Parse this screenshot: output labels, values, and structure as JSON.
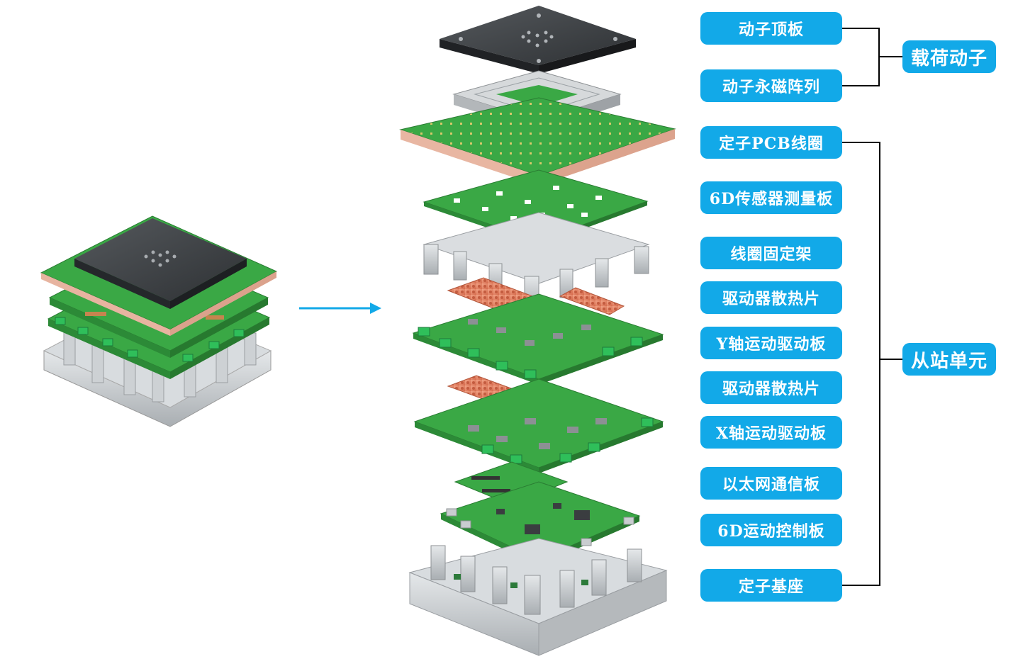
{
  "components": [
    {
      "label": "动子顶板"
    },
    {
      "label": "动子永磁阵列"
    },
    {
      "label": "定子PCB线圈"
    },
    {
      "label": "6D传感器测量板"
    },
    {
      "label": "线圈固定架"
    },
    {
      "label": "驱动器散热片"
    },
    {
      "label": "Y轴运动驱动板"
    },
    {
      "label": "驱动器散热片"
    },
    {
      "label": "X轴运动驱动板"
    },
    {
      "label": "以太网通信板"
    },
    {
      "label": "6D运动控制板"
    },
    {
      "label": "定子基座"
    }
  ],
  "groups": {
    "mover": {
      "label": "载荷动子"
    },
    "slave": {
      "label": "从站单元"
    }
  },
  "colors": {
    "label_bg": "#12a9e8",
    "arrow": "#12a9e8",
    "bracket": "#000000",
    "pcb_green": "#3aa845",
    "aluminum": "#c9cdd0",
    "copper": "#e98a6a",
    "dark_plate": "#3a3d40"
  }
}
